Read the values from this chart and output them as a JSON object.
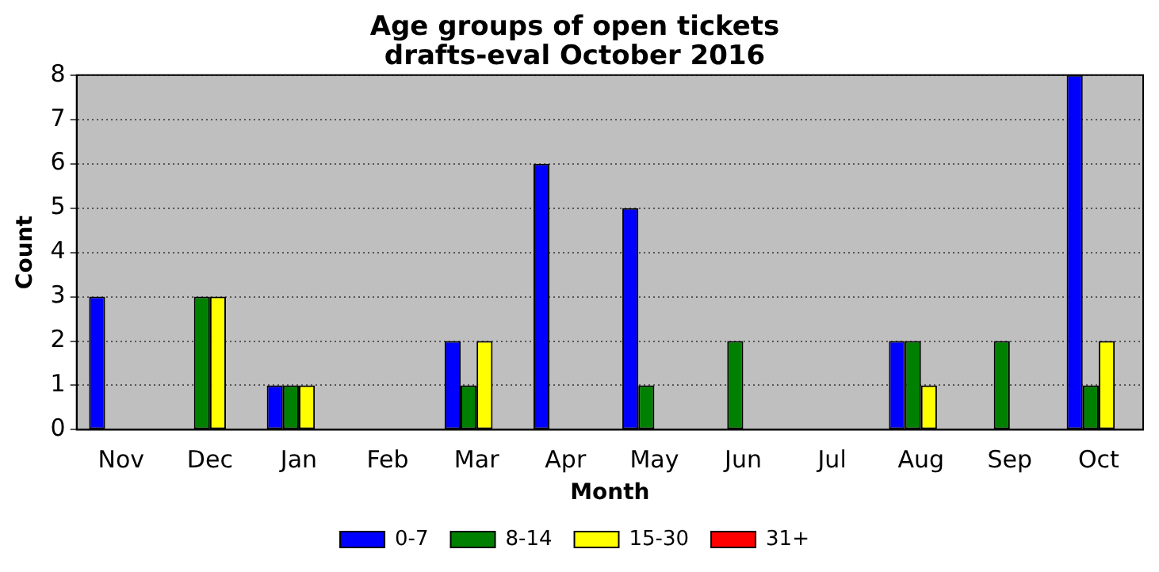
{
  "chart_data": {
    "type": "bar",
    "title": "Age groups of open tickets\ndrafts-eval October 2016",
    "xlabel": "Month",
    "ylabel": "Count",
    "categories": [
      "Nov",
      "Dec",
      "Jan",
      "Feb",
      "Mar",
      "Apr",
      "May",
      "Jun",
      "Jul",
      "Aug",
      "Sep",
      "Oct"
    ],
    "series": [
      {
        "name": "0-7",
        "color": "#0000ff",
        "values": [
          3,
          0,
          1,
          0,
          2,
          6,
          5,
          0,
          0,
          2,
          0,
          8
        ]
      },
      {
        "name": "8-14",
        "color": "#008000",
        "values": [
          0,
          3,
          1,
          0,
          1,
          0,
          1,
          2,
          0,
          2,
          2,
          1
        ]
      },
      {
        "name": "15-30",
        "color": "#ffff00",
        "values": [
          0,
          3,
          1,
          0,
          2,
          0,
          0,
          0,
          0,
          1,
          0,
          2
        ]
      },
      {
        "name": "31+",
        "color": "#ff0000",
        "values": [
          0,
          0,
          0,
          0,
          0,
          0,
          0,
          0,
          0,
          0,
          0,
          0
        ]
      }
    ],
    "ylim": [
      0,
      8
    ],
    "yticks": [
      0,
      1,
      2,
      3,
      4,
      5,
      6,
      7,
      8
    ],
    "grid": "y",
    "legend": "bottom"
  }
}
